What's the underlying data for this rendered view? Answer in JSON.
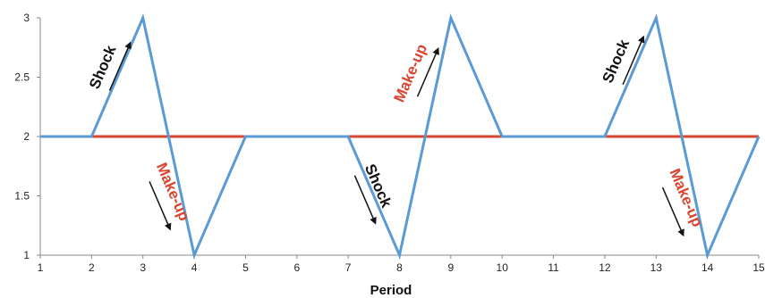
{
  "chart_data": {
    "type": "line",
    "xlabel": "Period",
    "ylabel": "",
    "title": "",
    "xlim": [
      1,
      15
    ],
    "ylim": [
      1,
      3
    ],
    "x_ticks": [
      "1",
      "2",
      "3",
      "4",
      "5",
      "6",
      "7",
      "8",
      "9",
      "10",
      "11",
      "12",
      "13",
      "14",
      "15"
    ],
    "y_ticks": [
      "1",
      "1.5",
      "2",
      "2.5",
      "3"
    ],
    "grid": false,
    "series": [
      {
        "color": "#5B9BD5",
        "x": [
          1,
          2,
          3,
          4,
          5,
          6,
          7,
          8,
          9,
          10,
          11,
          12,
          13,
          14,
          15
        ],
        "y": [
          2,
          2,
          3,
          1,
          2,
          2,
          2,
          1,
          3,
          2,
          2,
          2,
          3,
          1,
          2
        ]
      },
      {
        "color": "#D9452F",
        "x": [
          1,
          15
        ],
        "y": [
          2,
          2
        ]
      }
    ],
    "annotations": [
      {
        "text": "Shock",
        "color": "#111111",
        "x": 2.4,
        "y": 2.55,
        "direction": "up"
      },
      {
        "text": "Make-up",
        "color": "#D9452F",
        "x": 3.4,
        "y": 1.5,
        "direction": "down"
      },
      {
        "text": "Shock",
        "color": "#111111",
        "x": 7.4,
        "y": 1.55,
        "direction": "down"
      },
      {
        "text": "Make-up",
        "color": "#D9452F",
        "x": 8.4,
        "y": 2.5,
        "direction": "up"
      },
      {
        "text": "Shock",
        "color": "#111111",
        "x": 12.4,
        "y": 2.6,
        "direction": "up"
      },
      {
        "text": "Make-up",
        "color": "#D9452F",
        "x": 13.4,
        "y": 1.45,
        "direction": "down"
      }
    ]
  }
}
